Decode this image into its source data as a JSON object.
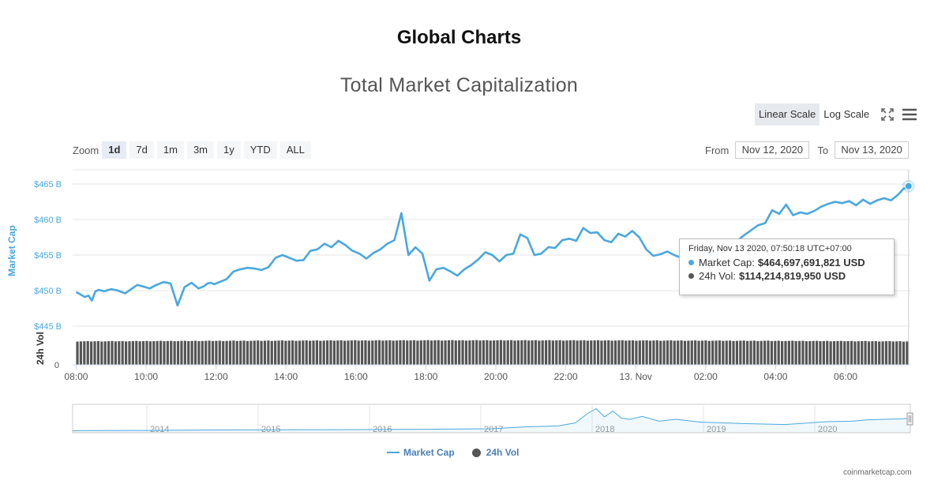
{
  "page": {
    "title": "Global Charts"
  },
  "chart_data": {
    "type": "line",
    "title": "Total Market Capitalization",
    "ylabel": "Market Cap",
    "ylabel2": "24h Vol",
    "y_ticks": [
      "$445 B",
      "$450 B",
      "$455 B",
      "$460 B",
      "$465 B"
    ],
    "ylim": [
      445,
      467
    ],
    "vol_tick": "0",
    "x_ticks": [
      "08:00",
      "10:00",
      "12:00",
      "14:00",
      "16:00",
      "18:00",
      "20:00",
      "22:00",
      "13. Nov",
      "02:00",
      "04:00",
      "06:00"
    ],
    "x_range_hours": [
      -0.1,
      23.85
    ],
    "series": [
      {
        "name": "Market Cap",
        "unit": "B USD",
        "color": "#4aa7de",
        "x": [
          0,
          0.25,
          0.35,
          0.45,
          0.55,
          0.65,
          0.8,
          1.0,
          1.2,
          1.4,
          1.6,
          1.75,
          1.9,
          2.1,
          2.3,
          2.5,
          2.7,
          2.9,
          3.1,
          3.3,
          3.5,
          3.65,
          3.75,
          3.85,
          3.95,
          4.1,
          4.3,
          4.5,
          4.7,
          4.9,
          5.1,
          5.3,
          5.5,
          5.7,
          5.9,
          6.1,
          6.3,
          6.5,
          6.7,
          6.9,
          7.1,
          7.3,
          7.5,
          7.7,
          7.9,
          8.1,
          8.3,
          8.5,
          8.7,
          8.9,
          9.1,
          9.3,
          9.5,
          9.7,
          9.9,
          10.1,
          10.3,
          10.5,
          10.7,
          10.9,
          11.1,
          11.3,
          11.5,
          11.7,
          11.9,
          12.1,
          12.3,
          12.5,
          12.7,
          12.9,
          13.1,
          13.3,
          13.5,
          13.7,
          13.9,
          14.1,
          14.3,
          14.5,
          14.7,
          14.9,
          15.1,
          15.3,
          15.5,
          15.7,
          15.9,
          16.1,
          16.3,
          16.5,
          16.7,
          16.9,
          17.1,
          17.3,
          17.5,
          17.7,
          17.9,
          18.1,
          18.3,
          18.5,
          18.7,
          18.9,
          19.1,
          19.3,
          19.5,
          19.7,
          19.9,
          20.1,
          20.3,
          20.5,
          20.7,
          20.9,
          21.1,
          21.3,
          21.5,
          21.7,
          21.9,
          22.1,
          22.3,
          22.5,
          22.7,
          22.9,
          23.1,
          23.3,
          23.5,
          23.65,
          23.8
        ],
        "values": [
          449.8,
          449.1,
          449.3,
          448.6,
          449.9,
          450.1,
          449.9,
          450.2,
          450.0,
          449.6,
          450.3,
          450.8,
          450.6,
          450.3,
          450.8,
          451.2,
          451.0,
          447.9,
          450.5,
          451.1,
          450.3,
          450.6,
          451.0,
          451.1,
          450.9,
          451.2,
          451.6,
          452.7,
          453.0,
          453.2,
          453.1,
          452.9,
          453.3,
          454.6,
          455.0,
          454.6,
          454.2,
          454.3,
          455.6,
          455.8,
          456.6,
          456.1,
          457.0,
          456.4,
          455.6,
          455.2,
          454.5,
          455.3,
          455.8,
          456.6,
          457.1,
          460.9,
          455.0,
          456.1,
          455.2,
          451.4,
          453.0,
          453.2,
          452.7,
          452.1,
          453.0,
          453.6,
          454.4,
          455.4,
          455.0,
          454.1,
          455.0,
          455.2,
          457.9,
          457.4,
          455.0,
          455.2,
          456.1,
          456.0,
          457.1,
          457.3,
          457.0,
          458.8,
          458.1,
          458.2,
          457.1,
          456.8,
          458.0,
          457.6,
          458.4,
          457.5,
          455.8,
          454.9,
          455.1,
          455.5,
          455.0,
          454.6,
          454.8,
          454.8,
          455.3,
          454.9,
          455.3,
          455.5,
          456.5,
          457.0,
          457.8,
          458.5,
          459.2,
          459.5,
          461.3,
          460.8,
          462.1,
          460.6,
          461.0,
          460.8,
          461.2,
          461.8,
          462.2,
          462.5,
          462.3,
          462.6,
          462.0,
          462.8,
          462.2,
          462.7,
          463.0,
          462.7,
          463.5,
          464.3,
          464.7
        ]
      },
      {
        "name": "24h Vol",
        "color": "#555555",
        "bars": 240,
        "level_relative": [
          0.6,
          0.63
        ]
      }
    ],
    "navigator": {
      "years": [
        "2014",
        "2015",
        "2016",
        "2017",
        "2018",
        "2019",
        "2020"
      ]
    },
    "legend": [
      "Market Cap",
      "24h Vol"
    ],
    "legend_position": "bottom-center"
  },
  "toolbar": {
    "linear_scale": "Linear Scale",
    "log_scale": "Log Scale"
  },
  "zoom": {
    "label": "Zoom",
    "options": [
      "1d",
      "7d",
      "1m",
      "3m",
      "1y",
      "YTD",
      "ALL"
    ],
    "active": "1d"
  },
  "range": {
    "from_label": "From",
    "from_value": "Nov 12, 2020",
    "to_label": "To",
    "to_value": "Nov 13, 2020"
  },
  "tooltip": {
    "date": "Friday, Nov 13 2020, 07:50:18 UTC+07:00",
    "market_cap_label": "Market Cap:",
    "market_cap_value": "$464,697,691,821 USD",
    "vol_label": "24h Vol:",
    "vol_value": "$114,214,819,950 USD"
  },
  "credits": "coinmarketcap.com"
}
